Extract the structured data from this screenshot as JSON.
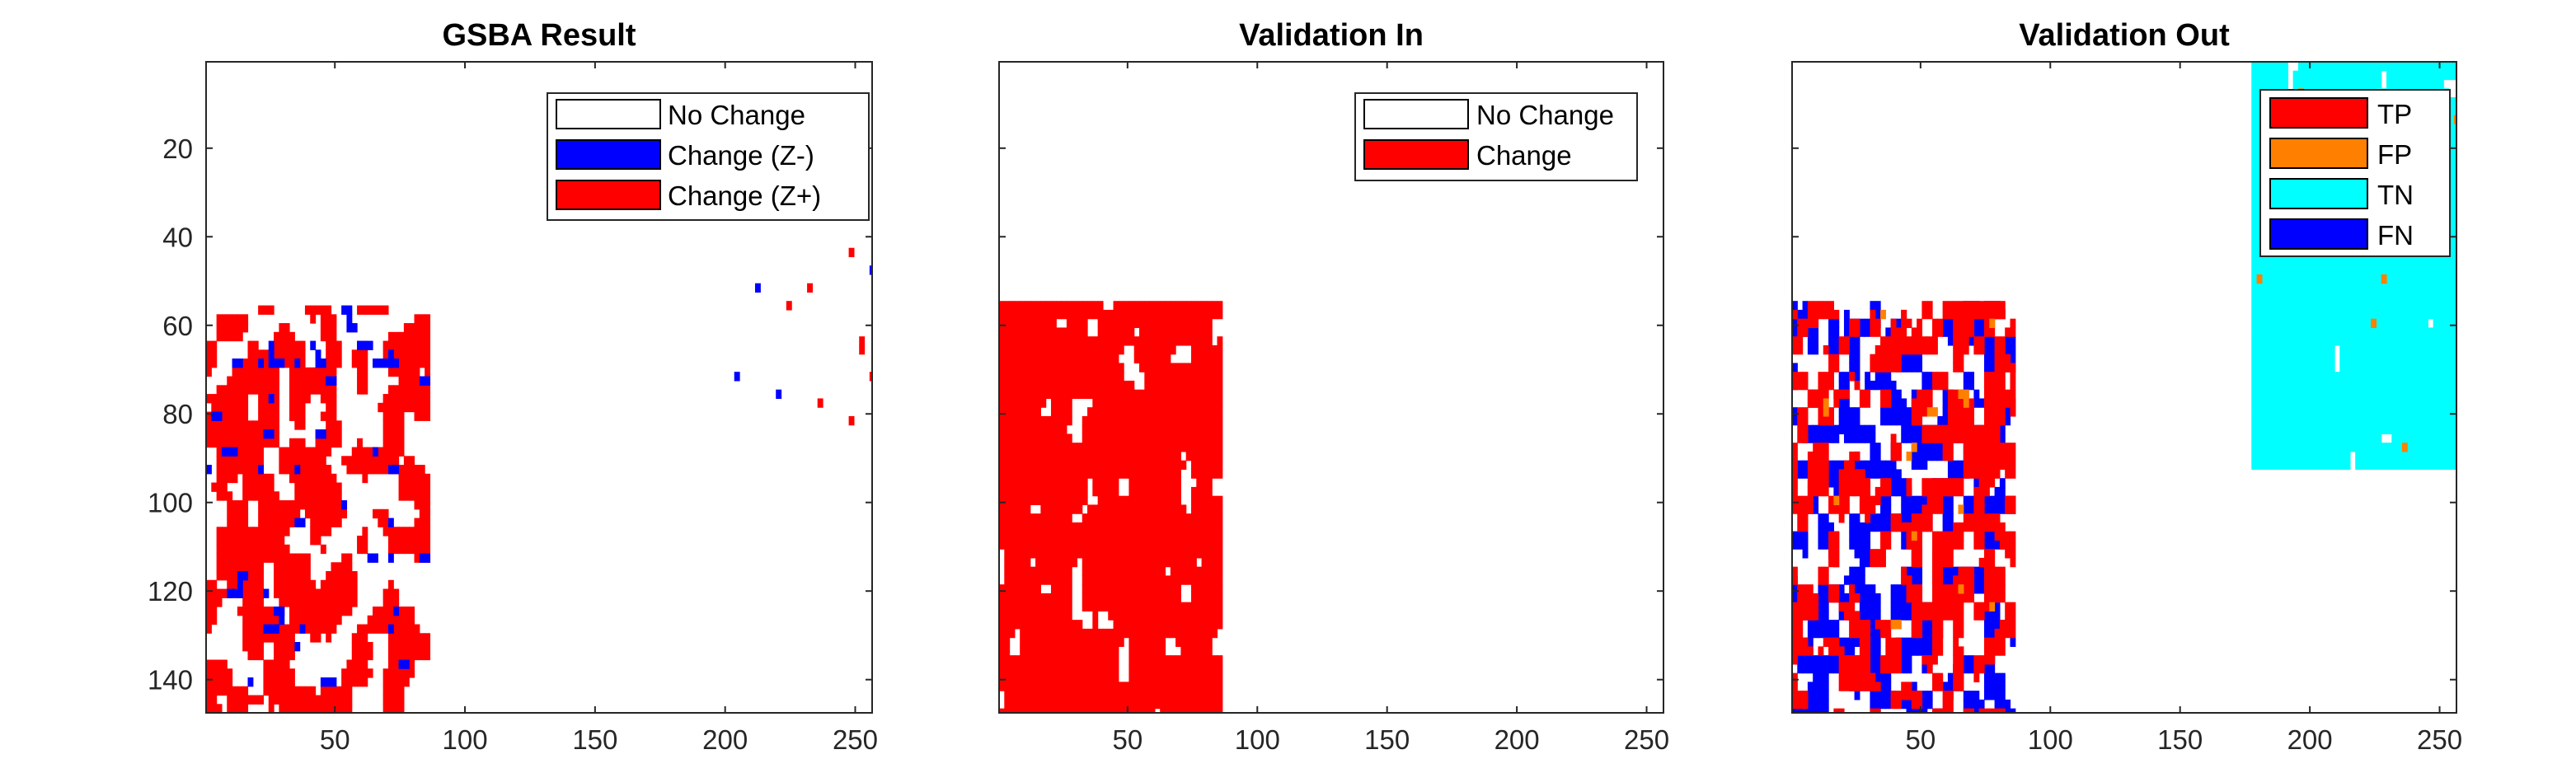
{
  "chart_data": [
    {
      "type": "heatmap",
      "title": "GSBA Result",
      "xlim": [
        1,
        256
      ],
      "ylim": [
        1,
        147
      ],
      "xticks": [
        50,
        100,
        150,
        200,
        250
      ],
      "yticks": [
        20,
        40,
        60,
        80,
        100,
        120,
        140
      ],
      "grid": false,
      "legend": {
        "placement": "top-right",
        "entries": [
          {
            "label": "No Change",
            "color": "#ffffff"
          },
          {
            "label": "Change (Z-)",
            "color": "#0000ff"
          },
          {
            "label": "Change (Z+)",
            "color": "#ff0000"
          }
        ]
      },
      "background": "#ffffff",
      "regions": [
        {
          "color": "#ff0000",
          "x": [
            1,
            86
          ],
          "y": [
            56,
            147
          ],
          "density": 0.55
        },
        {
          "color": "#0000ff",
          "x": [
            1,
            86
          ],
          "y": [
            56,
            147
          ],
          "density": 0.12
        },
        {
          "color": "#ff0000",
          "x": [
            180,
            256
          ],
          "y": [
            1,
            90
          ],
          "density": 0.04
        },
        {
          "color": "#0000ff",
          "x": [
            180,
            256
          ],
          "y": [
            1,
            90
          ],
          "density": 0.02
        }
      ]
    },
    {
      "type": "heatmap",
      "title": "Validation In",
      "xlim": [
        1,
        256
      ],
      "ylim": [
        1,
        147
      ],
      "xticks": [
        50,
        100,
        150,
        200,
        250
      ],
      "yticks": [
        20,
        40,
        60,
        80,
        100,
        120,
        140
      ],
      "grid": false,
      "legend": {
        "placement": "top-right",
        "entries": [
          {
            "label": "No Change",
            "color": "#ffffff"
          },
          {
            "label": "Change",
            "color": "#ff0000"
          }
        ]
      },
      "background": "#ffffff",
      "regions": [
        {
          "color": "#ff0000",
          "x": [
            1,
            86
          ],
          "y": [
            55,
            147
          ],
          "density": 0.82
        }
      ]
    },
    {
      "type": "heatmap",
      "title": "Validation Out",
      "xlim": [
        1,
        256
      ],
      "ylim": [
        1,
        147
      ],
      "xticks": [
        50,
        100,
        150,
        200,
        250
      ],
      "yticks": [
        20,
        40,
        60,
        80,
        100,
        120,
        140
      ],
      "grid": false,
      "legend": {
        "placement": "top-right",
        "entries": [
          {
            "label": "TP",
            "color": "#ff0000"
          },
          {
            "label": "FP",
            "color": "#ff8000"
          },
          {
            "label": "TN",
            "color": "#00ffff"
          },
          {
            "label": "FN",
            "color": "#0000ff"
          }
        ]
      },
      "background": "#ffffff",
      "regions": [
        {
          "color": "#0000ff",
          "x": [
            1,
            86
          ],
          "y": [
            55,
            147
          ],
          "density": 0.45
        },
        {
          "color": "#ff0000",
          "x": [
            1,
            86
          ],
          "y": [
            55,
            147
          ],
          "density": 0.42
        },
        {
          "color": "#ff8000",
          "x": [
            1,
            86
          ],
          "y": [
            55,
            147
          ],
          "density": 0.08
        },
        {
          "color": "#00ffff",
          "x": [
            1,
            86
          ],
          "y": [
            55,
            147
          ],
          "density": 0.03
        },
        {
          "color": "#00ffff",
          "x": [
            178,
            256
          ],
          "y": [
            1,
            91
          ],
          "density": 0.93
        },
        {
          "color": "#ff8000",
          "x": [
            178,
            256
          ],
          "y": [
            1,
            91
          ],
          "density": 0.07
        }
      ]
    }
  ]
}
